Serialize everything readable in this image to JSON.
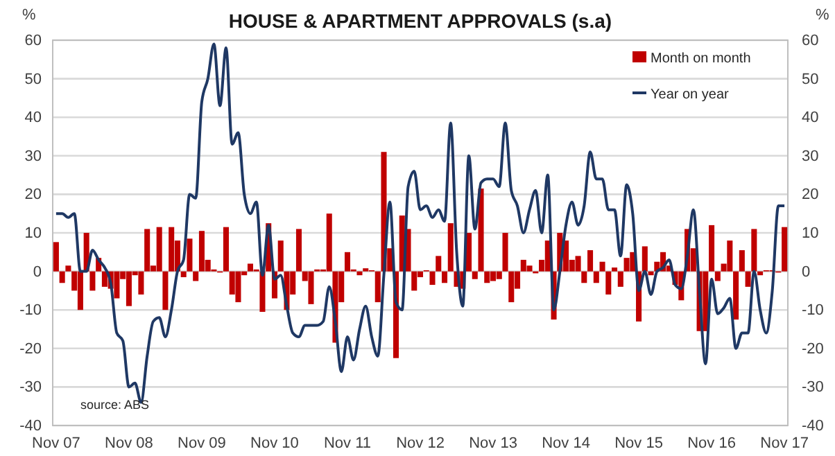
{
  "chart_data": {
    "type": "bar",
    "title": "HOUSE & APARTMENT APPROVALS (s.a)",
    "ylabel": "%",
    "y2label": "%",
    "categories": [
      "Nov 07",
      null,
      null,
      null,
      null,
      null,
      null,
      null,
      null,
      null,
      null,
      null,
      "Nov 08",
      null,
      null,
      null,
      null,
      null,
      null,
      null,
      null,
      null,
      null,
      null,
      "Nov 09",
      null,
      null,
      null,
      null,
      null,
      null,
      null,
      null,
      null,
      null,
      null,
      "Nov 10",
      null,
      null,
      null,
      null,
      null,
      null,
      null,
      null,
      null,
      null,
      null,
      "Nov 11",
      null,
      null,
      null,
      null,
      null,
      null,
      null,
      null,
      null,
      null,
      null,
      "Nov 12",
      null,
      null,
      null,
      null,
      null,
      null,
      null,
      null,
      null,
      null,
      null,
      "Nov 13",
      null,
      null,
      null,
      null,
      null,
      null,
      null,
      null,
      null,
      null,
      null,
      "Nov 14",
      null,
      null,
      null,
      null,
      null,
      null,
      null,
      null,
      null,
      null,
      null,
      "Nov 15",
      null,
      null,
      null,
      null,
      null,
      null,
      null,
      null,
      null,
      null,
      null,
      "Nov 16",
      null,
      null,
      null,
      null,
      null,
      null,
      null,
      null,
      null,
      null,
      null,
      "Nov 17"
    ],
    "series": [
      {
        "name": "Month on month",
        "color": "#c00000",
        "values": [
          7.6,
          -3,
          1.5,
          -5,
          -10,
          10,
          -5,
          3.5,
          -4,
          -4.5,
          -7,
          -2,
          -9,
          -1,
          -6,
          11,
          1.5,
          11.5,
          -10,
          11.5,
          8,
          -1.5,
          8.5,
          -2.5,
          10.5,
          3,
          0.5,
          -0.3,
          11.5,
          -6,
          -8,
          -1,
          2,
          0.5,
          -10.5,
          12.5,
          -7,
          8,
          -10,
          -6,
          11,
          -2.5,
          -8.5,
          0.5,
          0.5,
          15,
          -18.5,
          -8,
          5,
          0.5,
          -1,
          0.8,
          0.3,
          -8,
          31,
          6,
          -22.5,
          14.5,
          11,
          -5,
          -1.5,
          0.3,
          -3.5,
          4,
          -3,
          12.5,
          -4,
          -4.5,
          10,
          -2,
          21.5,
          -3,
          -2.5,
          -2,
          10,
          -8,
          -4.5,
          3,
          1.5,
          -0.5,
          3,
          8,
          -12.5,
          10,
          8,
          3,
          4,
          -3,
          5.5,
          -3,
          2.5,
          -6,
          1,
          -4,
          3.5,
          5,
          -13,
          6.5,
          -1,
          2.5,
          5,
          1.5,
          -3.5,
          -7.5,
          11,
          6,
          -15.5,
          -15.5,
          12,
          -2.5,
          2,
          8,
          -12.5,
          5.5,
          -4,
          11,
          -1,
          0.3,
          0.3,
          -0.3,
          11.5
        ]
      },
      {
        "name": "Year on year",
        "type": "line",
        "color": "#1f3864",
        "values": [
          15,
          15,
          14,
          15,
          0,
          0,
          5.5,
          3,
          1,
          -3,
          -16,
          -18,
          -30,
          -29,
          -34,
          -22,
          -13,
          -12,
          -17,
          -10,
          0,
          3,
          20,
          19,
          44,
          50,
          59,
          43,
          58,
          33,
          36,
          20,
          15,
          18,
          -1,
          12,
          -2,
          -1,
          -9,
          -16,
          -17,
          -14,
          -14,
          -14,
          -13,
          -4,
          -13,
          -26,
          -17,
          -23,
          -15,
          -9,
          -17,
          -22,
          -1,
          18,
          -8,
          -10,
          22,
          26,
          16,
          17,
          14,
          16,
          13,
          38.5,
          5,
          -9,
          30,
          11,
          23,
          24,
          24,
          22,
          38.5,
          21,
          17,
          10,
          16,
          21,
          10,
          25,
          -10,
          0,
          12,
          18,
          12,
          17,
          31,
          24,
          24,
          16,
          16,
          4,
          22.5,
          15,
          -5,
          0,
          -6,
          0,
          1,
          3,
          -3.5,
          -4.5,
          4,
          16,
          -5,
          -24,
          -2,
          -11,
          -9.5,
          -7,
          -20,
          -16,
          -16,
          0,
          -10,
          -16,
          -5,
          17,
          17
        ]
      }
    ],
    "ylim": [
      -40,
      60
    ],
    "yticks": [
      -40,
      -30,
      -20,
      -10,
      0,
      10,
      20,
      30,
      40,
      50,
      60
    ],
    "y2lim": [
      -40,
      60
    ],
    "y2ticks": [
      -40,
      -30,
      -20,
      -10,
      0,
      10,
      20,
      30,
      40,
      50,
      60
    ],
    "grid": "y",
    "legend": "top right",
    "annotations": [
      "source: ABS"
    ]
  }
}
